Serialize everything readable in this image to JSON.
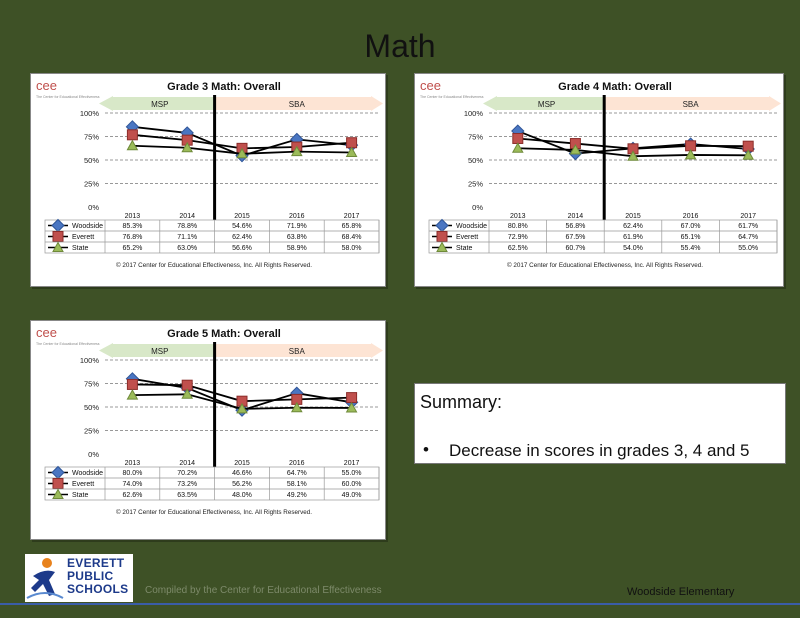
{
  "page": {
    "title": "Math",
    "footer_credit": "Compiled by the Center for Educational Effectiveness",
    "footer_school": "Woodside Elementary"
  },
  "summary": {
    "heading": "Summary:",
    "bullet": "•",
    "text": "Decrease in scores in grades 3, 4  and 5"
  },
  "logo": {
    "line1": "EVERETT",
    "line2": "PUBLIC",
    "line3": "SCHOOLS"
  },
  "colors": {
    "background": "#3e5126",
    "woodside": "#4a76c2",
    "everett": "#c0504d",
    "state": "#9bbb59",
    "msp_band": "#d8e8c8",
    "sba_band": "#fde4d4"
  },
  "chart_data": [
    {
      "type": "line",
      "title": "Grade 3 Math: Overall",
      "brand": "cee",
      "brand_sub": "The Center for Educational Effectiveness",
      "band_left": "MSP",
      "band_right": "SBA",
      "copyright": "© 2017 Center for Educational Effectiveness, Inc. All Rights Reserved.",
      "categories": [
        "2013",
        "2014",
        "2015",
        "2016",
        "2017"
      ],
      "y_ticks": [
        "0%",
        "25%",
        "50%",
        "75%",
        "100%"
      ],
      "ylim": [
        0,
        100
      ],
      "series": [
        {
          "name": "Woodside",
          "values": [
            85.3,
            78.8,
            54.6,
            71.9,
            65.8
          ],
          "labels": [
            "85.3%",
            "78.8%",
            "54.6%",
            "71.9%",
            "65.8%"
          ]
        },
        {
          "name": "Everett",
          "values": [
            76.8,
            71.1,
            62.4,
            63.8,
            68.4
          ],
          "labels": [
            "76.8%",
            "71.1%",
            "62.4%",
            "63.8%",
            "68.4%"
          ]
        },
        {
          "name": "State",
          "values": [
            65.2,
            63.0,
            56.6,
            58.9,
            58.0
          ],
          "labels": [
            "65.2%",
            "63.0%",
            "56.6%",
            "58.9%",
            "58.0%"
          ]
        }
      ]
    },
    {
      "type": "line",
      "title": "Grade 4 Math: Overall",
      "brand": "cee",
      "brand_sub": "The Center for Educational Effectiveness",
      "band_left": "MSP",
      "band_right": "SBA",
      "copyright": "© 2017 Center for Educational Effectiveness, Inc. All Rights Reserved.",
      "categories": [
        "2013",
        "2014",
        "2015",
        "2016",
        "2017"
      ],
      "y_ticks": [
        "0%",
        "25%",
        "50%",
        "75%",
        "100%"
      ],
      "ylim": [
        0,
        100
      ],
      "series": [
        {
          "name": "Woodside",
          "values": [
            80.8,
            56.8,
            62.4,
            67.0,
            61.7
          ],
          "labels": [
            "80.8%",
            "56.8%",
            "62.4%",
            "67.0%",
            "61.7%"
          ]
        },
        {
          "name": "Everett",
          "values": [
            72.9,
            67.5,
            61.9,
            65.1,
            64.7
          ],
          "labels": [
            "72.9%",
            "67.5%",
            "61.9%",
            "65.1%",
            "64.7%"
          ]
        },
        {
          "name": "State",
          "values": [
            62.5,
            60.7,
            54.0,
            55.4,
            55.0
          ],
          "labels": [
            "62.5%",
            "60.7%",
            "54.0%",
            "55.4%",
            "55.0%"
          ]
        }
      ]
    },
    {
      "type": "line",
      "title": "Grade 5 Math: Overall",
      "brand": "cee",
      "brand_sub": "The Center for Educational Effectiveness",
      "band_left": "MSP",
      "band_right": "SBA",
      "copyright": "© 2017 Center for Educational Effectiveness, Inc. All Rights Reserved.",
      "categories": [
        "2013",
        "2014",
        "2015",
        "2016",
        "2017"
      ],
      "y_ticks": [
        "0%",
        "25%",
        "50%",
        "75%",
        "100%"
      ],
      "ylim": [
        0,
        100
      ],
      "series": [
        {
          "name": "Woodside",
          "values": [
            80.0,
            70.2,
            46.6,
            64.7,
            55.0
          ],
          "labels": [
            "80.0%",
            "70.2%",
            "46.6%",
            "64.7%",
            "55.0%"
          ]
        },
        {
          "name": "Everett",
          "values": [
            74.0,
            73.2,
            56.2,
            58.1,
            60.0
          ],
          "labels": [
            "74.0%",
            "73.2%",
            "56.2%",
            "58.1%",
            "60.0%"
          ]
        },
        {
          "name": "State",
          "values": [
            62.6,
            63.5,
            48.0,
            49.2,
            49.0
          ],
          "labels": [
            "62.6%",
            "63.5%",
            "48.0%",
            "49.2%",
            "49.0%"
          ]
        }
      ]
    }
  ]
}
